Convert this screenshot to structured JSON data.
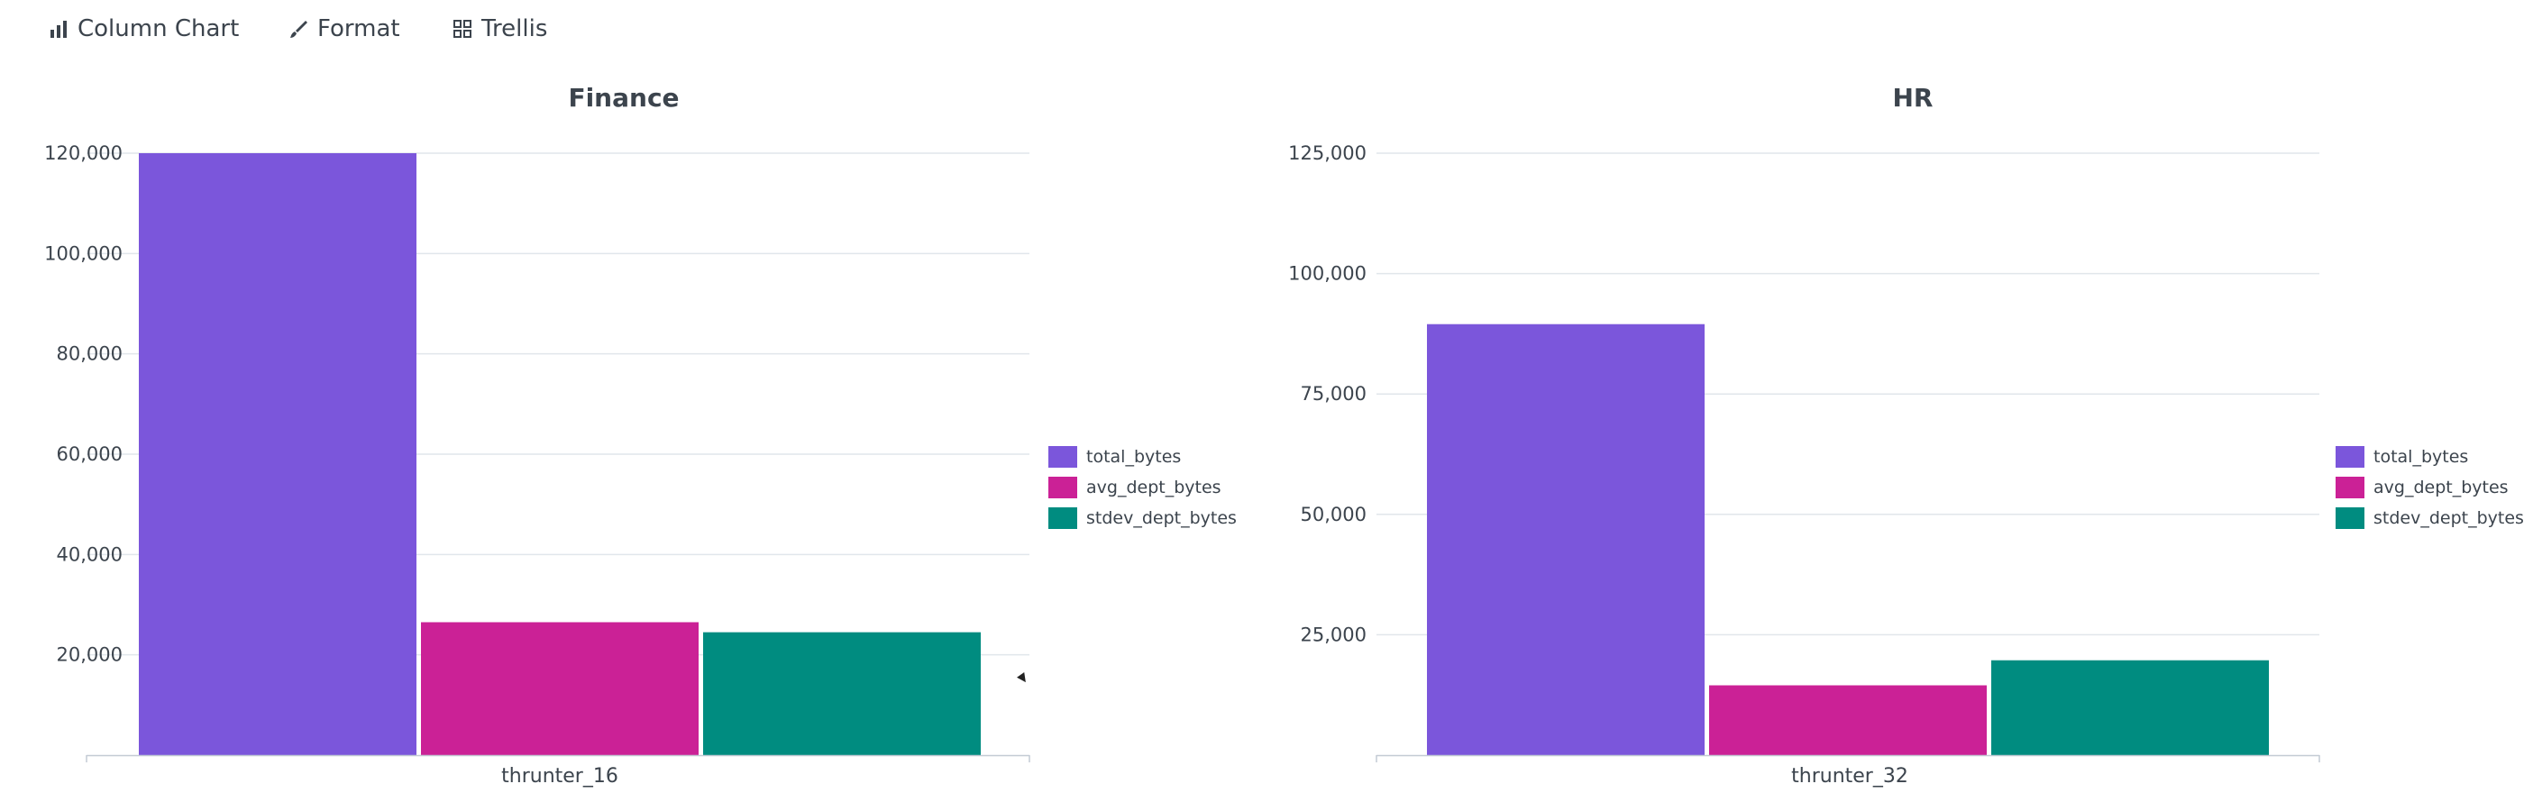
{
  "toolbar": {
    "column_chart_label": "Column Chart",
    "format_label": "Format",
    "trellis_label": "Trellis",
    "icons": [
      "bar-chart-icon",
      "brush-icon",
      "grid-icon"
    ]
  },
  "colors": {
    "total_bytes": "#7b56db",
    "avg_dept_bytes": "#cb2196",
    "stdev_dept_bytes": "#008c80",
    "gridline": "#e1e6eb",
    "text": "#3c444d"
  },
  "chart_data": [
    {
      "type": "bar",
      "title": "Finance",
      "categories": [
        "thrunter_16"
      ],
      "series": [
        {
          "name": "total_bytes",
          "values": [
            120000
          ]
        },
        {
          "name": "avg_dept_bytes",
          "values": [
            26500
          ]
        },
        {
          "name": "stdev_dept_bytes",
          "values": [
            24500
          ]
        }
      ],
      "ylim": [
        0,
        120000
      ],
      "yticks": [
        20000,
        40000,
        60000,
        80000,
        100000,
        120000
      ],
      "ytick_labels": [
        "20,000",
        "40,000",
        "60,000",
        "80,000",
        "100,000",
        "120,000"
      ],
      "grid": true,
      "legend": "right"
    },
    {
      "type": "bar",
      "title": "HR",
      "categories": [
        "thrunter_32"
      ],
      "series": [
        {
          "name": "total_bytes",
          "values": [
            89500
          ]
        },
        {
          "name": "avg_dept_bytes",
          "values": [
            14500
          ]
        },
        {
          "name": "stdev_dept_bytes",
          "values": [
            19700
          ]
        }
      ],
      "ylim": [
        0,
        125000
      ],
      "yticks": [
        25000,
        50000,
        75000,
        100000,
        125000
      ],
      "ytick_labels": [
        "25,000",
        "50,000",
        "75,000",
        "100,000",
        "125,000"
      ],
      "grid": true,
      "legend": "right"
    }
  ]
}
